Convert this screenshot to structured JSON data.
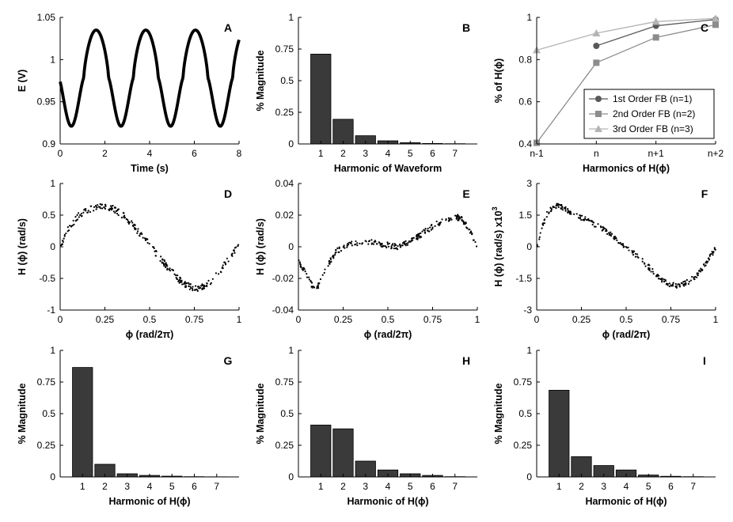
{
  "chart_data": [
    {
      "panel": "A",
      "type": "line",
      "xlabel": "Time   (s)",
      "ylabel": "E  (V)",
      "xlim": [
        0,
        8
      ],
      "ylim": [
        0.9,
        1.05
      ],
      "xticks": [
        0,
        2,
        4,
        6,
        8
      ],
      "xtick_labels": [
        "0",
        "2",
        "4",
        "6",
        "8"
      ],
      "yticks": [
        0.9,
        0.95,
        1.0,
        1.05
      ],
      "ytick_labels": [
        "0.9",
        "0.95",
        "1",
        "1.05"
      ],
      "series": [
        {
          "period": 2.22,
          "min": 0.921,
          "max": 1.035,
          "min_times": [
            0.5,
            2.72,
            4.94,
            7.16
          ]
        }
      ],
      "color": "#000000"
    },
    {
      "panel": "B",
      "type": "bar",
      "xlabel": "Harmonic of Waveform",
      "ylabel": "% Magnitude",
      "categories": [
        "1",
        "2",
        "3",
        "4",
        "5",
        "6",
        "7"
      ],
      "values": [
        0.71,
        0.195,
        0.065,
        0.025,
        0.01,
        0.004,
        0.002
      ],
      "ylim": [
        0,
        1
      ],
      "yticks": [
        0,
        0.25,
        0.5,
        0.75,
        1
      ],
      "ytick_labels": [
        "0",
        "0.25",
        "0.5",
        "0.75",
        "1"
      ]
    },
    {
      "panel": "C",
      "type": "line",
      "xlabel": "Harmonics of H(ϕ)",
      "ylabel": "% of H(ϕ)",
      "categories": [
        "n-1",
        "n",
        "n+1",
        "n+2"
      ],
      "ylim": [
        0.4,
        1
      ],
      "yticks": [
        0.4,
        0.6,
        0.8,
        1
      ],
      "ytick_labels": [
        "0.4",
        "0.6",
        "0.8",
        "1"
      ],
      "legend_position": "center-right",
      "series": [
        {
          "name": "1st Order FB (n=1)",
          "values": [
            null,
            0.865,
            0.96,
            0.99
          ],
          "color": "#595959",
          "marker": "circle"
        },
        {
          "name": "2nd Order FB (n=2)",
          "values": [
            0.405,
            0.785,
            0.905,
            0.965
          ],
          "color": "#8c8c8c",
          "marker": "square"
        },
        {
          "name": "3rd Order FB (n=3)",
          "values": [
            0.845,
            0.925,
            0.98,
            0.995
          ],
          "color": "#b4b4b4",
          "marker": "triangle"
        }
      ]
    },
    {
      "panel": "D",
      "type": "scatter",
      "xlabel": "ϕ   (rad/2π)",
      "ylabel": "H (ϕ)  (rad/s)",
      "xlim": [
        0,
        1
      ],
      "ylim": [
        -1,
        1
      ],
      "xticks": [
        0,
        0.25,
        0.5,
        0.75,
        1
      ],
      "xtick_labels": [
        "0",
        "0.25",
        "0.5",
        "0.75",
        "1"
      ],
      "yticks": [
        -1,
        -0.5,
        0,
        0.5,
        1
      ],
      "ytick_labels": [
        "-1",
        "-0.5",
        "0",
        "0.5",
        "1"
      ],
      "curve_x": [
        0,
        0.05,
        0.1,
        0.15,
        0.2,
        0.25,
        0.3,
        0.35,
        0.4,
        0.45,
        0.5,
        0.55,
        0.6,
        0.65,
        0.7,
        0.75,
        0.8,
        0.85,
        0.9,
        0.95,
        1.0
      ],
      "curve_y": [
        0.0,
        0.3,
        0.48,
        0.58,
        0.63,
        0.64,
        0.6,
        0.5,
        0.36,
        0.2,
        0.03,
        -0.15,
        -0.32,
        -0.48,
        -0.6,
        -0.66,
        -0.64,
        -0.52,
        -0.36,
        -0.16,
        0.05
      ],
      "spread": 0.05
    },
    {
      "panel": "E",
      "type": "scatter",
      "xlabel": "ϕ   (rad/2π)",
      "ylabel": "H (ϕ)  (rad/s)",
      "xlim": [
        0,
        1
      ],
      "ylim": [
        -0.04,
        0.04
      ],
      "xticks": [
        0,
        0.25,
        0.5,
        0.75,
        1
      ],
      "xtick_labels": [
        "0",
        "0.25",
        "0.5",
        "0.75",
        "1"
      ],
      "yticks": [
        -0.04,
        -0.02,
        0,
        0.02,
        0.04
      ],
      "ytick_labels": [
        "-0.04",
        "-0.02",
        "0",
        "0.02",
        "0.04"
      ],
      "curve_x": [
        0,
        0.04,
        0.08,
        0.1,
        0.13,
        0.17,
        0.22,
        0.3,
        0.4,
        0.5,
        0.55,
        0.6,
        0.65,
        0.7,
        0.75,
        0.8,
        0.85,
        0.88,
        0.92,
        0.96,
        1.0
      ],
      "curve_y": [
        -0.008,
        -0.017,
        -0.025,
        -0.027,
        -0.02,
        -0.01,
        -0.002,
        0.002,
        0.003,
        0.001,
        0.0,
        0.002,
        0.005,
        0.009,
        0.013,
        0.016,
        0.018,
        0.019,
        0.017,
        0.01,
        -0.002
      ],
      "spread": 0.0018
    },
    {
      "panel": "F",
      "type": "scatter",
      "xlabel": "ϕ   (rad/2π)",
      "ylabel": "H (ϕ)  (rad/s) x10",
      "ylabel_exponent": "3",
      "xlim": [
        0,
        1
      ],
      "ylim": [
        -3,
        3
      ],
      "xticks": [
        0,
        0.25,
        0.5,
        0.75,
        1
      ],
      "xtick_labels": [
        "0",
        "0.25",
        "0.5",
        "0.75",
        "1"
      ],
      "yticks": [
        -3,
        -1.5,
        0,
        1.5,
        3
      ],
      "ytick_labels": [
        "-3",
        "-1.5",
        "0",
        "1.5",
        "3"
      ],
      "curve_x": [
        0,
        0.03,
        0.06,
        0.1,
        0.13,
        0.17,
        0.22,
        0.28,
        0.35,
        0.42,
        0.5,
        0.55,
        0.6,
        0.65,
        0.7,
        0.75,
        0.8,
        0.85,
        0.9,
        0.95,
        1.0
      ],
      "curve_y": [
        0.0,
        0.9,
        1.6,
        1.95,
        1.95,
        1.75,
        1.5,
        1.25,
        0.95,
        0.55,
        0.0,
        -0.35,
        -0.75,
        -1.15,
        -1.55,
        -1.8,
        -1.85,
        -1.65,
        -1.3,
        -0.75,
        -0.05
      ],
      "spread": 0.12
    },
    {
      "panel": "G",
      "type": "bar",
      "xlabel": "Harmonic of H(ϕ)",
      "ylabel": "% Magnitude",
      "categories": [
        "1",
        "2",
        "3",
        "4",
        "5",
        "6",
        "7"
      ],
      "values": [
        0.865,
        0.1,
        0.025,
        0.012,
        0.006,
        0.002,
        0.001
      ],
      "ylim": [
        0,
        1
      ],
      "yticks": [
        0,
        0.25,
        0.5,
        0.75,
        1
      ],
      "ytick_labels": [
        "0",
        "0.25",
        "0.5",
        "0.75",
        "1"
      ]
    },
    {
      "panel": "H",
      "type": "bar",
      "xlabel": "Harmonic of H(ϕ)",
      "ylabel": "% Magnitude",
      "categories": [
        "1",
        "2",
        "3",
        "4",
        "5",
        "6",
        "7"
      ],
      "values": [
        0.41,
        0.38,
        0.125,
        0.055,
        0.025,
        0.012,
        0.002
      ],
      "ylim": [
        0,
        1
      ],
      "yticks": [
        0,
        0.25,
        0.5,
        0.75,
        1
      ],
      "ytick_labels": [
        "0",
        "0.25",
        "0.5",
        "0.75",
        "1"
      ]
    },
    {
      "panel": "I",
      "type": "bar",
      "xlabel": "Harmonic of H(ϕ)",
      "ylabel": "% Magnitude",
      "categories": [
        "1",
        "2",
        "3",
        "4",
        "5",
        "6",
        "7"
      ],
      "values": [
        0.685,
        0.16,
        0.09,
        0.055,
        0.015,
        0.005,
        0.002
      ],
      "ylim": [
        0,
        1
      ],
      "yticks": [
        0,
        0.25,
        0.5,
        0.75,
        1
      ],
      "ytick_labels": [
        "0",
        "0.25",
        "0.5",
        "0.75",
        "1"
      ]
    }
  ]
}
